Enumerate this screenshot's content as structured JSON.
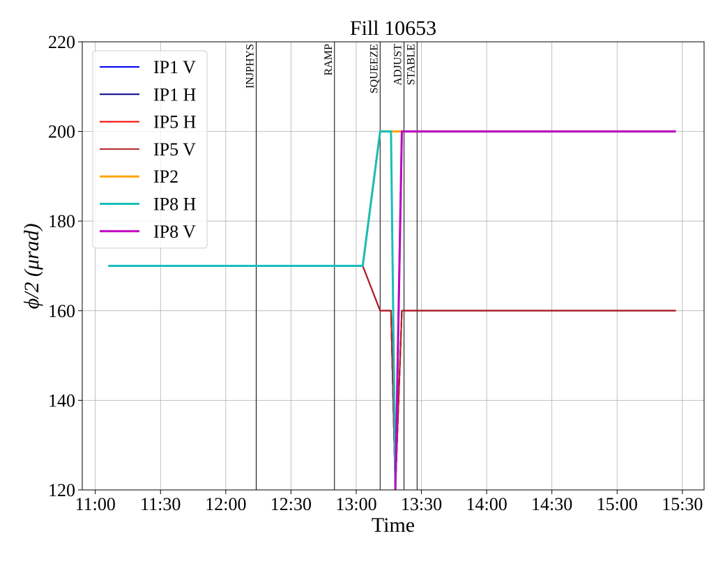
{
  "chart_data": {
    "type": "line",
    "title": "Fill 10653",
    "xlabel": "Time",
    "ylabel": "ϕ/2 (μrad)",
    "x": [
      "11:06",
      "13:03",
      "13:11",
      "13:16",
      "13:18",
      "13:21",
      "15:27"
    ],
    "series": [
      {
        "name": "IP1 V",
        "color": "#0000ff",
        "linewidth": 2,
        "values": [
          170,
          170,
          160,
          160,
          120,
          160,
          160
        ]
      },
      {
        "name": "IP1 H",
        "color": "#00008b",
        "linewidth": 2,
        "values": [
          170,
          170,
          160,
          160,
          120,
          160,
          160
        ]
      },
      {
        "name": "IP5 H",
        "color": "#ff0000",
        "linewidth": 2,
        "values": [
          170,
          170,
          160,
          160,
          120,
          160,
          160
        ]
      },
      {
        "name": "IP5 V",
        "color": "#b22222",
        "linewidth": 2,
        "values": [
          170,
          170,
          160,
          160,
          120,
          160,
          160
        ]
      },
      {
        "name": "IP2",
        "color": "#ffa500",
        "linewidth": 3,
        "values": [
          170,
          170,
          200,
          200,
          200,
          200,
          200
        ]
      },
      {
        "name": "IP8 H",
        "color": "#17bebb",
        "linewidth": 3,
        "values": [
          170,
          170,
          200,
          200,
          120,
          200,
          200
        ]
      },
      {
        "name": "IP8 V",
        "color": "#c000c0",
        "linewidth": 3,
        "values": [
          null,
          null,
          null,
          null,
          120,
          200,
          200
        ]
      }
    ],
    "annotations": [
      {
        "label": "INJPHYS",
        "x": "12:14"
      },
      {
        "label": "RAMP",
        "x": "12:50"
      },
      {
        "label": "SQUEEZE",
        "x": "13:11"
      },
      {
        "label": "ADJUST",
        "x": "13:22"
      },
      {
        "label": "STABLE",
        "x": "13:28"
      }
    ],
    "xlim": [
      "10:54",
      "15:40"
    ],
    "xticks": [
      "11:00",
      "11:30",
      "12:00",
      "12:30",
      "13:00",
      "13:30",
      "14:00",
      "14:30",
      "15:00",
      "15:30"
    ],
    "ylim": [
      120,
      220
    ],
    "yticks": [
      120,
      140,
      160,
      180,
      200,
      220
    ],
    "grid": true,
    "legend": "upper left"
  }
}
